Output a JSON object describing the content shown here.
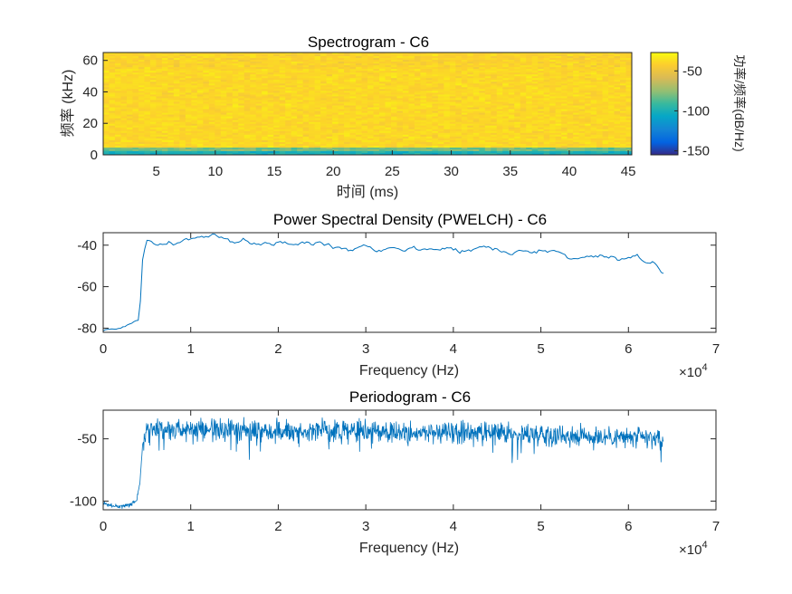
{
  "chart_data": [
    {
      "type": "heatmap",
      "title": "Spectrogram - C6",
      "xlabel": "时间 (ms)",
      "ylabel": "频率 (kHz)",
      "xlim": [
        0.5,
        45.3
      ],
      "ylim": [
        0,
        65
      ],
      "xticks": [
        "5",
        "10",
        "15",
        "20",
        "25",
        "30",
        "35",
        "40",
        "45"
      ],
      "yticks": [
        "0",
        "20",
        "40",
        "60"
      ],
      "colorbar": {
        "label": "功率/频率(dB/Hz)",
        "ticks": [
          "-50",
          "-100",
          "-150"
        ],
        "range": [
          -155,
          -27
        ],
        "colormap": "parula"
      },
      "description": "Mostly -35 to -45 dB/Hz across all times and frequencies above ~4 kHz; low-frequency band (0-4 kHz) near -80 dB/Hz"
    },
    {
      "type": "line",
      "title": "Power Spectral Density (PWELCH) - C6",
      "xlabel": "Frequency (Hz)",
      "ylabel": "",
      "x_exponent_label": "×10",
      "x_exponent_power": "4",
      "xlim": [
        0,
        70000
      ],
      "ylim": [
        -82,
        -34
      ],
      "xticks": [
        "0",
        "1",
        "2",
        "3",
        "4",
        "5",
        "6",
        "7"
      ],
      "yticks": [
        "-40",
        "-60",
        "-80"
      ],
      "series": [
        {
          "color": "#0072BD",
          "x": [
            0,
            2000,
            4000,
            4300,
            4500,
            5000,
            6000,
            8000,
            10000,
            12000,
            14000,
            16000,
            18000,
            20000,
            22000,
            24000,
            26000,
            28000,
            30000,
            32000,
            34000,
            36000,
            38000,
            40000,
            42000,
            44000,
            46000,
            48000,
            50000,
            52000,
            53000,
            55000,
            57000,
            59000,
            61000,
            62000,
            63000,
            64000
          ],
          "y": [
            -81,
            -80,
            -76,
            -65,
            -47,
            -38,
            -40,
            -39,
            -37,
            -36,
            -38,
            -38,
            -39,
            -39,
            -40,
            -39,
            -40,
            -41,
            -40,
            -41,
            -41,
            -42,
            -41,
            -42,
            -42,
            -41,
            -43,
            -42,
            -43,
            -43,
            -46,
            -45,
            -46,
            -48,
            -47,
            -49,
            -48,
            -53
          ]
        }
      ]
    },
    {
      "type": "line",
      "title": "Periodogram - C6",
      "xlabel": "Frequency (Hz)",
      "ylabel": "",
      "x_exponent_label": "×10",
      "x_exponent_power": "4",
      "xlim": [
        0,
        70000
      ],
      "ylim": [
        -107,
        -27
      ],
      "xticks": [
        "0",
        "1",
        "2",
        "3",
        "4",
        "5",
        "6",
        "7"
      ],
      "yticks": [
        "-50",
        "-100"
      ],
      "series": [
        {
          "color": "#0072BD",
          "x": [
            0,
            1000,
            2000,
            3000,
            3800,
            4200,
            4500,
            5000,
            10000,
            20000,
            30000,
            40000,
            50000,
            60000,
            64000
          ],
          "y": [
            -102,
            -104,
            -104,
            -103,
            -100,
            -85,
            -55,
            -42,
            -42,
            -43,
            -44,
            -45,
            -46,
            -49,
            -50
          ]
        }
      ]
    }
  ]
}
